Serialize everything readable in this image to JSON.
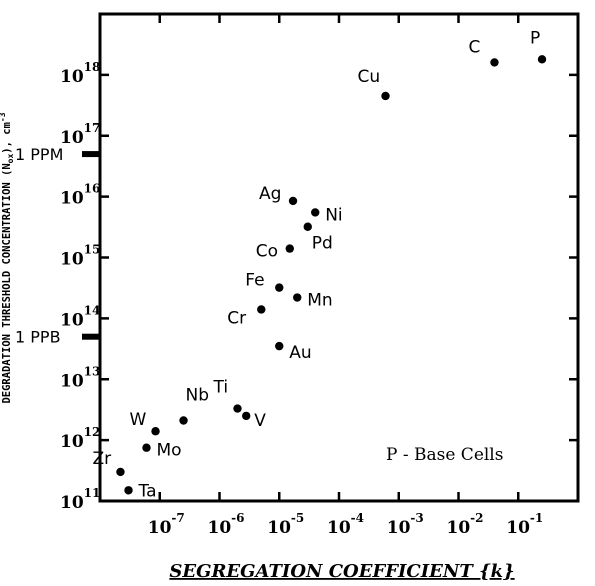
{
  "chart_data": {
    "type": "scatter",
    "x_scale": "log",
    "y_scale": "log",
    "xlabel": "SEGREGATION COEFFICIENT {k}",
    "ylabel": "DEGRADATION THRESHOLD CONCENTRATION (N",
    "ylabel_sub": "ox",
    "ylabel_suffix": "), cm",
    "ylabel_sup": "-3",
    "xlim": [
      1e-08,
      1
    ],
    "ylim": [
      100000000000.0,
      1e+19
    ],
    "grid": false,
    "x_ticks": [
      {
        "base": "10",
        "exp": "-7",
        "value": 1e-07
      },
      {
        "base": "10",
        "exp": "-6",
        "value": 1e-06
      },
      {
        "base": "10",
        "exp": "-5",
        "value": 1e-05
      },
      {
        "base": "10",
        "exp": "-4",
        "value": 0.0001
      },
      {
        "base": "10",
        "exp": "-3",
        "value": 0.001
      },
      {
        "base": "10",
        "exp": "-2",
        "value": 0.01
      },
      {
        "base": "10",
        "exp": "-1",
        "value": 0.1
      }
    ],
    "y_ticks": [
      {
        "base": "10",
        "exp": "11",
        "value": 100000000000.0
      },
      {
        "base": "10",
        "exp": "12",
        "value": 1000000000000.0
      },
      {
        "base": "10",
        "exp": "13",
        "value": 10000000000000.0
      },
      {
        "base": "10",
        "exp": "14",
        "value": 100000000000000.0
      },
      {
        "base": "10",
        "exp": "15",
        "value": 1000000000000000.0
      },
      {
        "base": "10",
        "exp": "16",
        "value": 1e+16
      },
      {
        "base": "10",
        "exp": "17",
        "value": 1e+17
      },
      {
        "base": "10",
        "exp": "18",
        "value": 1e+18
      }
    ],
    "reference_lines": [
      {
        "label": "1 PPM",
        "value": 5e+16
      },
      {
        "label": "1 PPB",
        "value": 50000000000000.0
      }
    ],
    "annotation": "P - Base Cells",
    "points": [
      {
        "label": "Ta",
        "x": 3e-08,
        "y": 150000000000.0
      },
      {
        "label": "Zr",
        "x": 2.2e-08,
        "y": 300000000000.0
      },
      {
        "label": "Mo",
        "x": 6e-08,
        "y": 750000000000.0
      },
      {
        "label": "W",
        "x": 8.5e-08,
        "y": 1400000000000.0
      },
      {
        "label": "Nb",
        "x": 2.5e-07,
        "y": 2100000000000.0
      },
      {
        "label": "Ti",
        "x": 2e-06,
        "y": 3300000000000.0
      },
      {
        "label": "V",
        "x": 2.8e-06,
        "y": 2500000000000.0
      },
      {
        "label": "Au",
        "x": 1e-05,
        "y": 35000000000000.0
      },
      {
        "label": "Cr",
        "x": 5e-06,
        "y": 140000000000000.0
      },
      {
        "label": "Fe",
        "x": 1e-05,
        "y": 320000000000000.0
      },
      {
        "label": "Mn",
        "x": 2e-05,
        "y": 220000000000000.0
      },
      {
        "label": "Co",
        "x": 1.5e-05,
        "y": 1400000000000000.0
      },
      {
        "label": "Pd",
        "x": 3e-05,
        "y": 3200000000000000.0
      },
      {
        "label": "Ni",
        "x": 4e-05,
        "y": 5500000000000000.0
      },
      {
        "label": "Ag",
        "x": 1.7e-05,
        "y": 8500000000000000.0
      },
      {
        "label": "Cu",
        "x": 0.0006,
        "y": 4.5e+17
      },
      {
        "label": "C",
        "x": 0.04,
        "y": 1.6e+18
      },
      {
        "label": "P",
        "x": 0.25,
        "y": 1.8e+18
      }
    ]
  }
}
